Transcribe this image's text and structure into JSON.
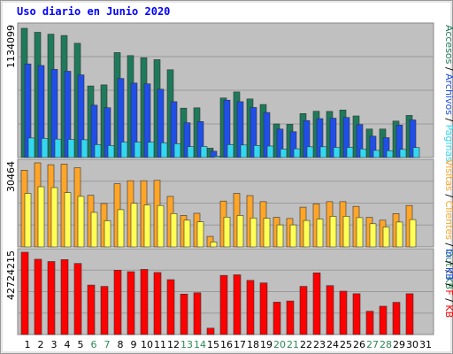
{
  "chart_data": {
    "type": "bar",
    "title": "Uso diario en Junio 2020",
    "x": [
      "1",
      "2",
      "3",
      "4",
      "5",
      "6",
      "7",
      "8",
      "9",
      "10",
      "11",
      "12",
      "13",
      "14",
      "15",
      "16",
      "17",
      "18",
      "19",
      "20",
      "21",
      "22",
      "23",
      "24",
      "25",
      "26",
      "27",
      "28",
      "29",
      "30",
      "31"
    ],
    "weekend_days": [
      "6",
      "7",
      "13",
      "14",
      "20",
      "21",
      "27",
      "28"
    ],
    "panels": [
      {
        "ymax": 1134099,
        "ymax_label": "1134099",
        "series": [
          {
            "name": "Accesos",
            "color": "#1e7a5a",
            "values": [
              1134099,
              1099500,
              1082500,
              1071200,
              1003200,
              628100,
              638100,
              921500,
              895000,
              876200,
              859000,
              770500,
              433100,
              436300,
              82000,
              522700,
              575600,
              514300,
              465500,
              295100,
              291900,
              385800,
              406300,
              404500,
              417300,
              365400,
              250000,
              250000,
              320000,
              370000,
              0
            ]
          },
          {
            "name": "Archivos",
            "color": "#1f4fe8",
            "values": [
              822000,
              808000,
              773600,
              757000,
              725400,
              459700,
              437400,
              694000,
              654100,
              647000,
              600000,
              490000,
              305000,
              316000,
              55700,
              503000,
              490000,
              440000,
              395000,
              250000,
              226800,
              325000,
              342000,
              345700,
              352000,
              290000,
              187100,
              175000,
              285000,
              330000,
              0
            ]
          },
          {
            "name": "Páginas",
            "color": "#33d8f0",
            "values": [
              172000,
              167500,
              161800,
              159400,
              155800,
              113500,
              106000,
              135900,
              135000,
              134600,
              130000,
              121000,
              95700,
              97200,
              11300,
              113400,
              110000,
              106300,
              101300,
              74600,
              77000,
              94600,
              94600,
              89300,
              89600,
              75600,
              63100,
              60000,
              71400,
              87500,
              0
            ]
          }
        ]
      },
      {
        "ymax": 30464,
        "ymax_label": "30464",
        "series": [
          {
            "name": "Visitas",
            "color": "#ffa528",
            "values": [
              27800,
              30464,
              29800,
              30000,
              28700,
              18700,
              15700,
              22900,
              24000,
              24000,
              24100,
              18300,
              11400,
              12200,
              3800,
              16600,
              19400,
              18600,
              16400,
              10700,
              10300,
              14400,
              15600,
              16400,
              16400,
              14700,
              10700,
              9700,
              12100,
              15000,
              0
            ]
          },
          {
            "name": "Visitantes",
            "color": "#ffff55",
            "values": [
              19400,
              21800,
              21500,
              19700,
              18300,
              12500,
              9500,
              13500,
              15800,
              15200,
              15000,
              12100,
              9700,
              9100,
              1800,
              10800,
              11400,
              10500,
              10400,
              8000,
              8000,
              9600,
              10100,
              11100,
              11100,
              10600,
              8400,
              7200,
              9000,
              9900,
              0
            ]
          }
        ]
      },
      {
        "ymax": 42724215,
        "ymax_label": "42724215",
        "series": [
          {
            "name": "KB F",
            "color": "#ff0000",
            "values": [
              42724215,
              39100000,
              37900000,
              38900000,
              36900000,
              25700000,
              25000000,
              33400000,
              32600000,
              33800000,
              32200000,
              28500000,
              21000000,
              21700000,
              3300000,
              30700000,
              31000000,
              28100000,
              26800000,
              16800000,
              17400000,
              25000000,
              32000000,
              25400000,
              22500000,
              21200000,
              12100000,
              14700000,
              16700000,
              21200000,
              0
            ]
          }
        ]
      }
    ],
    "right_labels": {
      "panel1": [
        {
          "text": "Accesos",
          "color": "#1e7a5a"
        },
        {
          "text": "Archivos",
          "color": "#1f4fe8"
        },
        {
          "text": "Páginas",
          "color": "#33d8f0"
        }
      ],
      "panel2": [
        {
          "text": "Visitas",
          "color": "#ffa528"
        },
        {
          "text": "Clientes",
          "color": "#ffa528"
        },
        {
          "text": "Out",
          "color": "#2e8b57"
        },
        {
          "text": "KB",
          "color": "#2e8b57"
        }
      ],
      "panel3": [
        {
          "text": "In",
          "color": "#1f4fe8"
        },
        {
          "text": "KB",
          "color": "#1f4fe8"
        },
        {
          "text": "F",
          "color": "#ff0000"
        },
        {
          "text": "KB",
          "color": "#ff0000"
        }
      ]
    }
  }
}
